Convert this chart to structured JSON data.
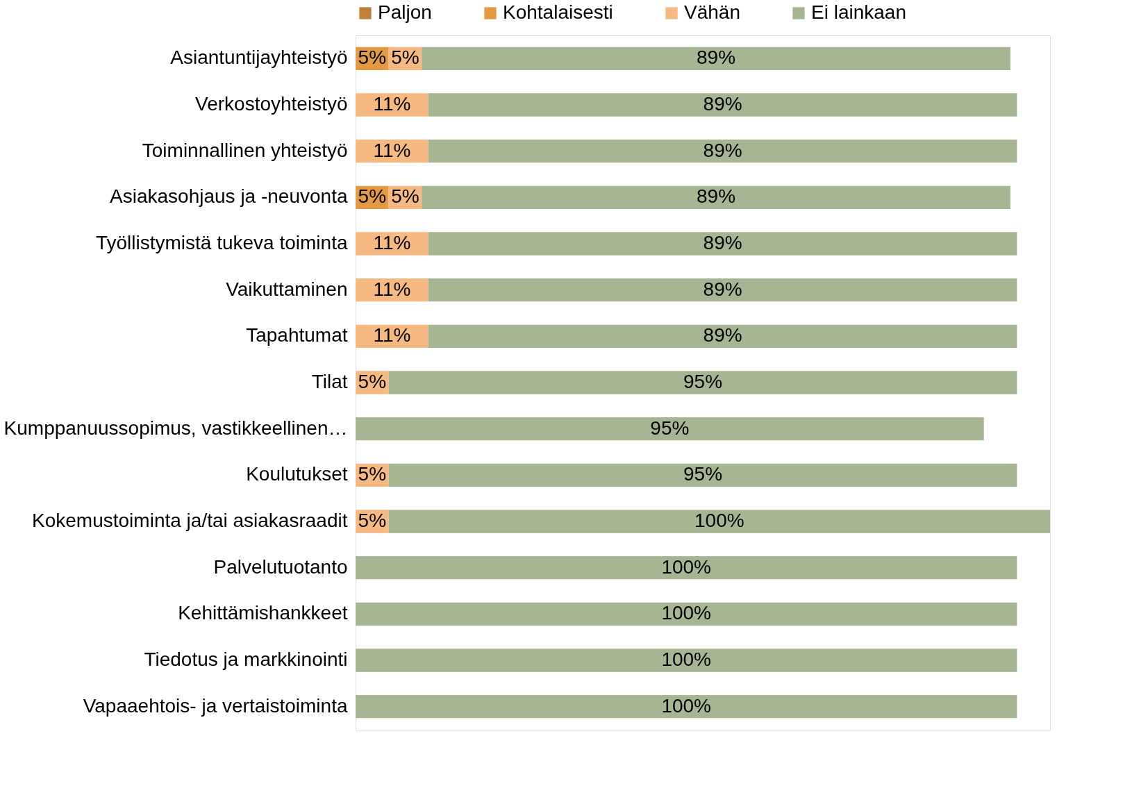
{
  "chart_data": {
    "type": "bar",
    "orientation": "horizontal",
    "stacked": true,
    "legend": "top",
    "categories": [
      "Asiantuntijayhteistyö",
      "Verkostoyhteistyö",
      "Toiminnallinen yhteistyö",
      "Asiakasohjaus ja -neuvonta",
      "Työllistymistä tukeva toiminta",
      "Vaikuttaminen",
      "Tapahtumat",
      "Tilat",
      "Kumppanuussopimus, vastikkeellinen…",
      "Koulutukset",
      "Kokemustoiminta ja/tai asiakasraadit",
      "Palvelutuotanto",
      "Kehittämishankkeet",
      "Tiedotus ja markkinointi",
      "Vapaaehtois- ja vertaistoiminta"
    ],
    "xlim": [
      0,
      105
    ],
    "series": [
      {
        "name": "Paljon",
        "color": "#c0813e",
        "values": [
          null,
          null,
          null,
          null,
          null,
          null,
          null,
          null,
          null,
          null,
          null,
          null,
          null,
          null,
          null
        ],
        "value_labels": [
          null,
          null,
          null,
          null,
          null,
          null,
          null,
          null,
          null,
          null,
          null,
          null,
          null,
          null,
          null
        ]
      },
      {
        "name": "Kohtalaisesti",
        "color": "#e29a43",
        "values": [
          5,
          null,
          null,
          5,
          null,
          null,
          null,
          null,
          null,
          null,
          null,
          null,
          null,
          null,
          null
        ],
        "value_labels": [
          "5%",
          null,
          null,
          "5%",
          null,
          null,
          null,
          null,
          null,
          null,
          null,
          null,
          null,
          null,
          null
        ]
      },
      {
        "name": "Vähän",
        "color": "#f5b981",
        "values": [
          5,
          11,
          11,
          5,
          11,
          11,
          11,
          5,
          null,
          5,
          5,
          null,
          null,
          null,
          null
        ],
        "value_labels": [
          "5%",
          "11%",
          "11%",
          "5%",
          "11%",
          "11%",
          "11%",
          "5%",
          null,
          "5%",
          "5%",
          null,
          null,
          null,
          null
        ]
      },
      {
        "name": "Ei lainkaan",
        "color": "#a6b592",
        "values": [
          89,
          89,
          89,
          89,
          89,
          89,
          89,
          95,
          95,
          95,
          100,
          100,
          100,
          100,
          100
        ],
        "value_labels": [
          "89%",
          "89%",
          "89%",
          "89%",
          "89%",
          "89%",
          "89%",
          "95%",
          "95%",
          "95%",
          "100%",
          "100%",
          "100%",
          "100%",
          "100%"
        ]
      }
    ]
  }
}
